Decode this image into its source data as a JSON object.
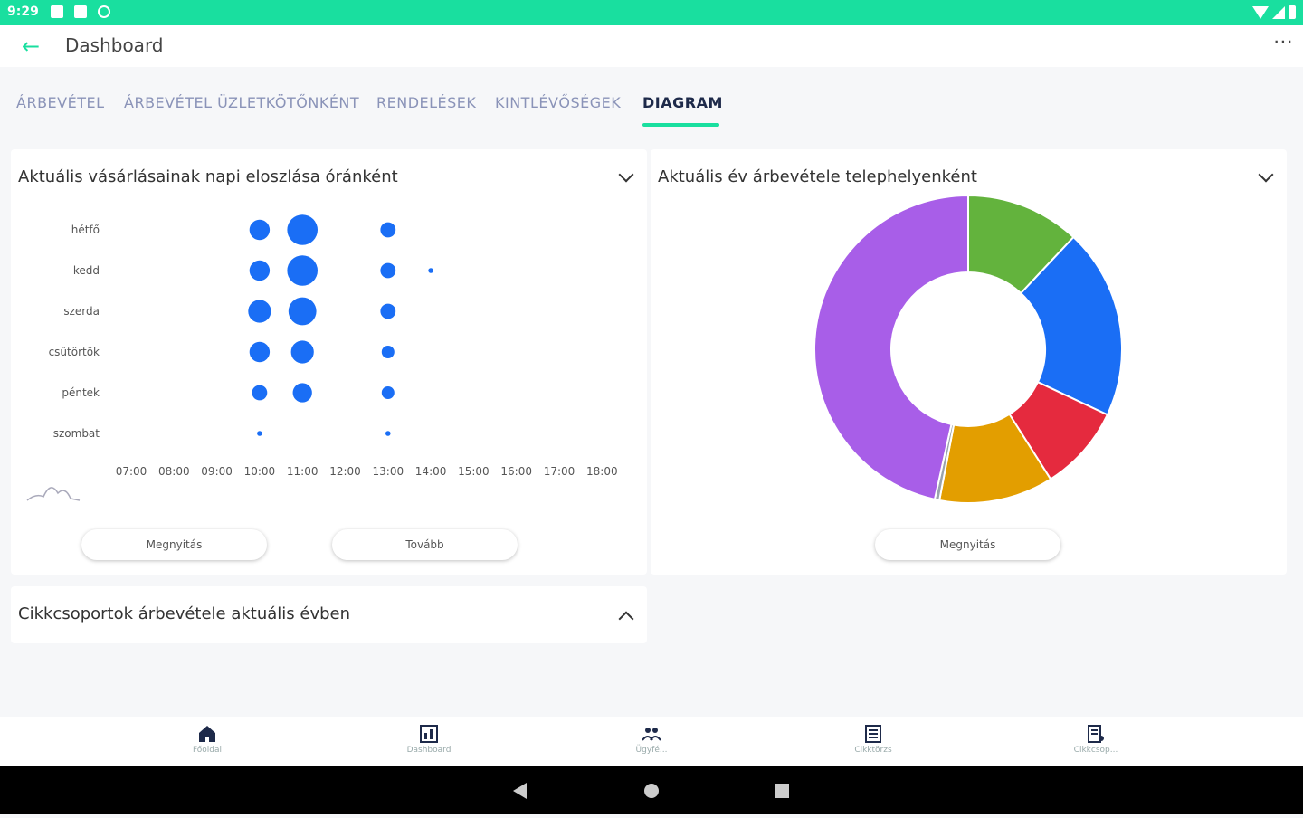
{
  "status_bar": {
    "time": "9:29"
  },
  "app_bar": {
    "title": "Dashboard"
  },
  "tabs": [
    {
      "label": "ÁRBEVÉTEL"
    },
    {
      "label": "ÁRBEVÉTEL ÜZLETKÖTŐNKÉNT"
    },
    {
      "label": "RENDELÉSEK"
    },
    {
      "label": "KINTLÉVŐSÉGEK"
    },
    {
      "label": "DIAGRAM"
    }
  ],
  "active_tab": "DIAGRAM",
  "cards": {
    "bubble": {
      "title": "Aktuális vásárlásainak napi eloszlása óránként",
      "open_label": "Megnyitás",
      "more_label": "Tovább"
    },
    "donut": {
      "title": "Aktuális év árbevétele telephelyenként",
      "open_label": "Megnyitás"
    },
    "category": {
      "title": "Cikkcsoportok árbevétele aktuális évben"
    }
  },
  "chart_data": [
    {
      "type": "scatter",
      "title": "Aktuális vásárlásainak napi eloszlása óránként",
      "x_ticks": [
        "07:00",
        "08:00",
        "09:00",
        "10:00",
        "11:00",
        "12:00",
        "13:00",
        "14:00",
        "15:00",
        "16:00",
        "17:00",
        "18:00"
      ],
      "y_categories": [
        "hétfő",
        "kedd",
        "szerda",
        "csütörtök",
        "péntek",
        "szombat"
      ],
      "points": [
        {
          "day": "hétfő",
          "hour": "10:00",
          "size": 4
        },
        {
          "day": "hétfő",
          "hour": "11:00",
          "size": 6
        },
        {
          "day": "hétfő",
          "hour": "13:00",
          "size": 3
        },
        {
          "day": "kedd",
          "hour": "10:00",
          "size": 4
        },
        {
          "day": "kedd",
          "hour": "11:00",
          "size": 6
        },
        {
          "day": "kedd",
          "hour": "13:00",
          "size": 3
        },
        {
          "day": "kedd",
          "hour": "14:00",
          "size": 1
        },
        {
          "day": "szerda",
          "hour": "10:00",
          "size": 4.5
        },
        {
          "day": "szerda",
          "hour": "11:00",
          "size": 5.5
        },
        {
          "day": "szerda",
          "hour": "13:00",
          "size": 3
        },
        {
          "day": "csütörtök",
          "hour": "10:00",
          "size": 4
        },
        {
          "day": "csütörtök",
          "hour": "11:00",
          "size": 4.5
        },
        {
          "day": "csütörtök",
          "hour": "13:00",
          "size": 2.5
        },
        {
          "day": "péntek",
          "hour": "10:00",
          "size": 3
        },
        {
          "day": "péntek",
          "hour": "11:00",
          "size": 3.8
        },
        {
          "day": "péntek",
          "hour": "13:00",
          "size": 2.5
        },
        {
          "day": "szombat",
          "hour": "10:00",
          "size": 1
        },
        {
          "day": "szombat",
          "hour": "13:00",
          "size": 1
        }
      ],
      "color": "#1a6ef5"
    },
    {
      "type": "pie",
      "title": "Aktuális év árbevétele telephelyenként",
      "donut": true,
      "slices": [
        {
          "value": 12,
          "color": "#63b33d"
        },
        {
          "value": 20,
          "color": "#1a6ef5"
        },
        {
          "value": 9,
          "color": "#e52a3e"
        },
        {
          "value": 12,
          "color": "#e39e00"
        },
        {
          "value": 0.5,
          "color": "#9aa3ad"
        },
        {
          "value": 46.5,
          "color": "#a85ee8"
        }
      ]
    }
  ],
  "bottom_nav": [
    {
      "label": "Főoldal",
      "icon": "home-icon"
    },
    {
      "label": "Dashboard",
      "icon": "dashboard-icon"
    },
    {
      "label": "Ügyfé...",
      "icon": "customers-icon"
    },
    {
      "label": "Cikktörzs",
      "icon": "catalog-icon"
    },
    {
      "label": "Cikkcsop...",
      "icon": "category-icon"
    }
  ]
}
